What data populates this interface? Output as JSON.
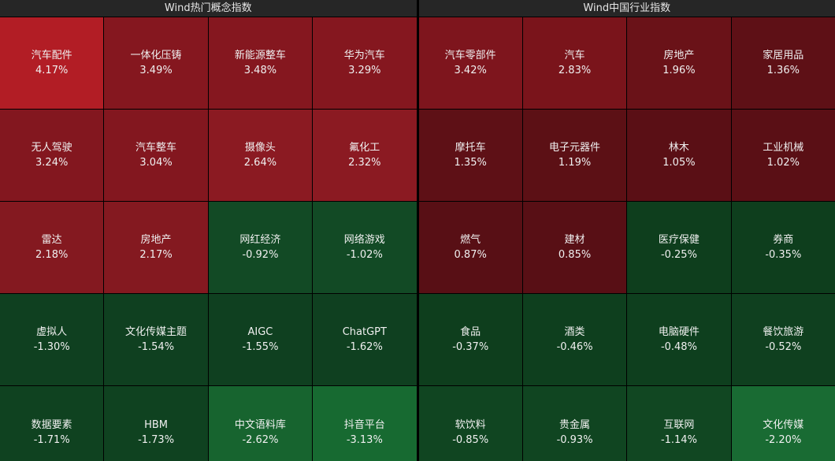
{
  "panels": [
    {
      "title": "Wind热门概念指数",
      "tiles": [
        {
          "name": "汽车配件",
          "change": "4.17%",
          "color": "#b21d25"
        },
        {
          "name": "一体化压铸",
          "change": "3.49%",
          "color": "#85171f"
        },
        {
          "name": "新能源整车",
          "change": "3.48%",
          "color": "#85171f"
        },
        {
          "name": "华为汽车",
          "change": "3.29%",
          "color": "#85171f"
        },
        {
          "name": "无人驾驶",
          "change": "3.24%",
          "color": "#83171f"
        },
        {
          "name": "汽车整车",
          "change": "3.04%",
          "color": "#83171f"
        },
        {
          "name": "摄像头",
          "change": "2.64%",
          "color": "#8b1a22"
        },
        {
          "name": "氟化工",
          "change": "2.32%",
          "color": "#8b1a22"
        },
        {
          "name": "雷达",
          "change": "2.18%",
          "color": "#841920"
        },
        {
          "name": "房地产",
          "change": "2.17%",
          "color": "#841920"
        },
        {
          "name": "网红经济",
          "change": "-0.92%",
          "color": "#124a25"
        },
        {
          "name": "网络游戏",
          "change": "-1.02%",
          "color": "#124a25"
        },
        {
          "name": "虚拟人",
          "change": "-1.30%",
          "color": "#0f4020"
        },
        {
          "name": "文化传媒主题",
          "change": "-1.54%",
          "color": "#0f4020"
        },
        {
          "name": "AIGC",
          "change": "-1.55%",
          "color": "#0f4020"
        },
        {
          "name": "ChatGPT",
          "change": "-1.62%",
          "color": "#0f4020"
        },
        {
          "name": "数据要素",
          "change": "-1.71%",
          "color": "#0f4220"
        },
        {
          "name": "HBM",
          "change": "-1.73%",
          "color": "#0f4220"
        },
        {
          "name": "中文语料库",
          "change": "-2.62%",
          "color": "#17642f"
        },
        {
          "name": "抖音平台",
          "change": "-3.13%",
          "color": "#176a31"
        }
      ]
    },
    {
      "title": "Wind中国行业指数",
      "tiles": [
        {
          "name": "汽车零部件",
          "change": "3.42%",
          "color": "#7e151d"
        },
        {
          "name": "汽车",
          "change": "2.83%",
          "color": "#7a141b"
        },
        {
          "name": "房地产",
          "change": "1.96%",
          "color": "#6a1218"
        },
        {
          "name": "家居用品",
          "change": "1.36%",
          "color": "#5e1016"
        },
        {
          "name": "摩托车",
          "change": "1.35%",
          "color": "#5e1016"
        },
        {
          "name": "电子元器件",
          "change": "1.19%",
          "color": "#5c1015"
        },
        {
          "name": "林木",
          "change": "1.05%",
          "color": "#5a0f15"
        },
        {
          "name": "工业机械",
          "change": "1.02%",
          "color": "#5a0f15"
        },
        {
          "name": "燃气",
          "change": "0.87%",
          "color": "#580f15"
        },
        {
          "name": "建材",
          "change": "0.85%",
          "color": "#580f15"
        },
        {
          "name": "医疗保健",
          "change": "-0.25%",
          "color": "#0e3e1d"
        },
        {
          "name": "券商",
          "change": "-0.35%",
          "color": "#0e3e1d"
        },
        {
          "name": "食品",
          "change": "-0.37%",
          "color": "#0e3e1d"
        },
        {
          "name": "酒类",
          "change": "-0.46%",
          "color": "#0e3f1e"
        },
        {
          "name": "电脑硬件",
          "change": "-0.48%",
          "color": "#0e3f1e"
        },
        {
          "name": "餐饮旅游",
          "change": "-0.52%",
          "color": "#0f401f"
        },
        {
          "name": "软饮料",
          "change": "-0.85%",
          "color": "#104521"
        },
        {
          "name": "贵金属",
          "change": "-0.93%",
          "color": "#104521"
        },
        {
          "name": "互联网",
          "change": "-1.14%",
          "color": "#114722"
        },
        {
          "name": "文化传媒",
          "change": "-2.20%",
          "color": "#196b33"
        }
      ]
    }
  ]
}
